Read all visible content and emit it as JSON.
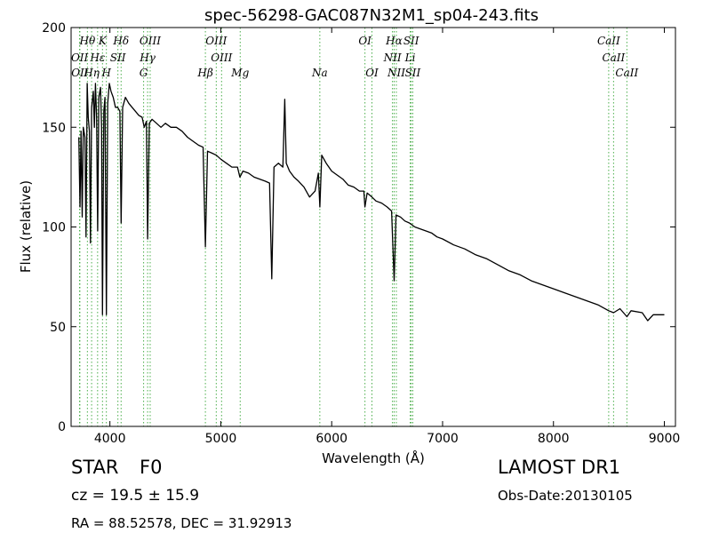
{
  "chart_data": {
    "type": "line",
    "title": "spec-56298-GAC087N32M1_sp04-243.fits",
    "xlabel": "Wavelength (Å)",
    "ylabel": "Flux (relative)",
    "xlim": [
      3650,
      9100
    ],
    "ylim": [
      0,
      200
    ],
    "xticks": [
      4000,
      5000,
      6000,
      7000,
      8000,
      9000
    ],
    "yticks": [
      0,
      50,
      100,
      150,
      200
    ],
    "grid": false,
    "line_color": "#000000",
    "marker_color": "#2ca02c",
    "series": [
      {
        "points": [
          [
            3720,
            145
          ],
          [
            3730,
            110
          ],
          [
            3740,
            148
          ],
          [
            3750,
            105
          ],
          [
            3760,
            150
          ],
          [
            3775,
            145
          ],
          [
            3785,
            95
          ],
          [
            3795,
            172
          ],
          [
            3805,
            155
          ],
          [
            3815,
            148
          ],
          [
            3825,
            92
          ],
          [
            3835,
            160
          ],
          [
            3850,
            168
          ],
          [
            3860,
            150
          ],
          [
            3870,
            172
          ],
          [
            3880,
            155
          ],
          [
            3890,
            98
          ],
          [
            3900,
            165
          ],
          [
            3915,
            170
          ],
          [
            3925,
            150
          ],
          [
            3933,
            56
          ],
          [
            3945,
            158
          ],
          [
            3955,
            165
          ],
          [
            3968,
            56
          ],
          [
            3980,
            162
          ],
          [
            3995,
            172
          ],
          [
            4010,
            168
          ],
          [
            4030,
            165
          ],
          [
            4050,
            160
          ],
          [
            4070,
            160
          ],
          [
            4090,
            158
          ],
          [
            4101,
            102
          ],
          [
            4115,
            160
          ],
          [
            4140,
            165
          ],
          [
            4170,
            162
          ],
          [
            4200,
            160
          ],
          [
            4230,
            158
          ],
          [
            4260,
            156
          ],
          [
            4290,
            155
          ],
          [
            4310,
            150
          ],
          [
            4330,
            153
          ],
          [
            4340,
            94
          ],
          [
            4355,
            152
          ],
          [
            4380,
            154
          ],
          [
            4420,
            152
          ],
          [
            4460,
            150
          ],
          [
            4500,
            152
          ],
          [
            4550,
            150
          ],
          [
            4600,
            150
          ],
          [
            4650,
            148
          ],
          [
            4700,
            145
          ],
          [
            4750,
            143
          ],
          [
            4800,
            141
          ],
          [
            4840,
            140
          ],
          [
            4861,
            90
          ],
          [
            4880,
            138
          ],
          [
            4920,
            137
          ],
          [
            4960,
            136
          ],
          [
            5000,
            134
          ],
          [
            5050,
            132
          ],
          [
            5100,
            130
          ],
          [
            5150,
            130
          ],
          [
            5172,
            125
          ],
          [
            5200,
            128
          ],
          [
            5250,
            127
          ],
          [
            5300,
            125
          ],
          [
            5350,
            124
          ],
          [
            5400,
            123
          ],
          [
            5440,
            122
          ],
          [
            5460,
            74
          ],
          [
            5480,
            130
          ],
          [
            5520,
            132
          ],
          [
            5560,
            130
          ],
          [
            5577,
            164
          ],
          [
            5590,
            132
          ],
          [
            5620,
            128
          ],
          [
            5660,
            125
          ],
          [
            5700,
            123
          ],
          [
            5750,
            120
          ],
          [
            5800,
            115
          ],
          [
            5850,
            118
          ],
          [
            5880,
            127
          ],
          [
            5893,
            110
          ],
          [
            5910,
            136
          ],
          [
            5950,
            132
          ],
          [
            6000,
            128
          ],
          [
            6050,
            126
          ],
          [
            6100,
            124
          ],
          [
            6150,
            121
          ],
          [
            6200,
            120
          ],
          [
            6250,
            118
          ],
          [
            6290,
            118
          ],
          [
            6300,
            110
          ],
          [
            6320,
            117
          ],
          [
            6363,
            115
          ],
          [
            6400,
            113
          ],
          [
            6450,
            112
          ],
          [
            6500,
            110
          ],
          [
            6540,
            108
          ],
          [
            6563,
            73
          ],
          [
            6580,
            106
          ],
          [
            6620,
            105
          ],
          [
            6660,
            103
          ],
          [
            6700,
            102
          ],
          [
            6750,
            100
          ],
          [
            6800,
            99
          ],
          [
            6850,
            98
          ],
          [
            6900,
            97
          ],
          [
            6950,
            95
          ],
          [
            7000,
            94
          ],
          [
            7100,
            91
          ],
          [
            7200,
            89
          ],
          [
            7300,
            86
          ],
          [
            7400,
            84
          ],
          [
            7500,
            81
          ],
          [
            7600,
            78
          ],
          [
            7700,
            76
          ],
          [
            7800,
            73
          ],
          [
            7900,
            71
          ],
          [
            8000,
            69
          ],
          [
            8100,
            67
          ],
          [
            8200,
            65
          ],
          [
            8300,
            63
          ],
          [
            8400,
            61
          ],
          [
            8498,
            58
          ],
          [
            8542,
            57
          ],
          [
            8600,
            59
          ],
          [
            8662,
            55
          ],
          [
            8700,
            58
          ],
          [
            8800,
            57
          ],
          [
            8850,
            53
          ],
          [
            8900,
            56
          ],
          [
            9000,
            56
          ]
        ]
      }
    ],
    "lines": [
      {
        "label": "Hθ",
        "x": 3797,
        "row": 0
      },
      {
        "label": "K",
        "x": 3933,
        "row": 0
      },
      {
        "label": "Hδ",
        "x": 4101,
        "row": 0
      },
      {
        "label": "OIII",
        "x": 4363,
        "row": 0
      },
      {
        "label": "OIII",
        "x": 4959,
        "row": 0
      },
      {
        "label": "OI",
        "x": 6300,
        "row": 0
      },
      {
        "label": "Hα",
        "x": 6563,
        "row": 0
      },
      {
        "label": "SII",
        "x": 6717,
        "row": 0
      },
      {
        "label": "CaII",
        "x": 8498,
        "row": 0
      },
      {
        "label": "OII",
        "x": 3727,
        "row": 1
      },
      {
        "label": "Hε",
        "x": 3889,
        "row": 1
      },
      {
        "label": "SII",
        "x": 4072,
        "row": 1
      },
      {
        "label": "Hγ",
        "x": 4340,
        "row": 1
      },
      {
        "label": "OIII",
        "x": 5007,
        "row": 1
      },
      {
        "label": "NII",
        "x": 6548,
        "row": 1
      },
      {
        "label": "Li",
        "x": 6708,
        "row": 1
      },
      {
        "label": "CaII",
        "x": 8542,
        "row": 1
      },
      {
        "label": "OII",
        "x": 3729,
        "row": 2
      },
      {
        "label": "Hη",
        "x": 3835,
        "row": 2
      },
      {
        "label": "H",
        "x": 3968,
        "row": 2
      },
      {
        "label": "G",
        "x": 4304,
        "row": 2
      },
      {
        "label": "Hβ",
        "x": 4861,
        "row": 2
      },
      {
        "label": "Mg",
        "x": 5175,
        "row": 2
      },
      {
        "label": "Na",
        "x": 5893,
        "row": 2
      },
      {
        "label": "OI",
        "x": 6363,
        "row": 2
      },
      {
        "label": "NII",
        "x": 6583,
        "row": 2
      },
      {
        "label": "SII",
        "x": 6731,
        "row": 2
      },
      {
        "label": "CaII",
        "x": 8662,
        "row": 2
      }
    ]
  },
  "info": {
    "object_class": "STAR",
    "subclass": "F0",
    "survey": "LAMOST DR1",
    "redshift": "cz = 19.5 ± 15.9",
    "obs_date": "Obs-Date:20130105",
    "coords": "RA = 88.52578, DEC = 31.92913"
  }
}
